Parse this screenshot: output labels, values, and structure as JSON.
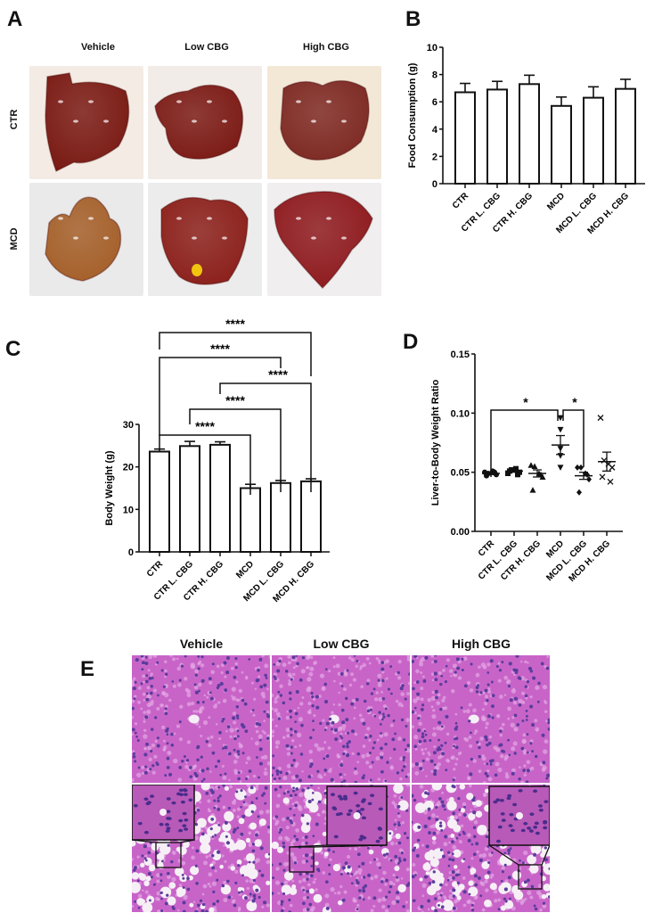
{
  "panel_a": {
    "letter": "A",
    "columns": [
      "Vehicle",
      "Low CBG",
      "High CBG"
    ],
    "rows": [
      "CTR",
      "MCD"
    ],
    "photos": [
      {
        "row": "CTR",
        "col": "Vehicle",
        "liver_color": "#7a1a14",
        "bg": "#f4ece4"
      },
      {
        "row": "CTR",
        "col": "Low CBG",
        "liver_color": "#7c1b16",
        "bg": "#f2ece8"
      },
      {
        "row": "CTR",
        "col": "High CBG",
        "liver_color": "#7e2a24",
        "bg": "#f3e7d6"
      },
      {
        "row": "MCD",
        "col": "Vehicle",
        "liver_color": "#a5602a",
        "bg": "#ebeaea"
      },
      {
        "row": "MCD",
        "col": "Low CBG",
        "liver_color": "#8c201b",
        "bg": "#ececec"
      },
      {
        "row": "MCD",
        "col": "High CBG",
        "liver_color": "#8e1a1e",
        "bg": "#f0eeee"
      }
    ]
  },
  "panel_b": {
    "letter": "B"
  },
  "panel_c": {
    "letter": "C"
  },
  "panel_d": {
    "letter": "D"
  },
  "panel_e": {
    "letter": "E",
    "columns": [
      "Vehicle",
      "Low CBG",
      "High CBG"
    ],
    "colors": {
      "tissue": "#c864c8",
      "nuclei": "#5a3c9c",
      "vacuole": "#f6f0f6"
    }
  },
  "chart_data": [
    {
      "id": "B",
      "type": "bar",
      "title": "",
      "xlabel": "",
      "ylabel": "Food Consumption (g)",
      "categories": [
        "CTR",
        "CTR L. CBG",
        "CTR H. CBG",
        "MCD",
        "MCD L. CBG",
        "MCD H. CBG"
      ],
      "values": [
        6.7,
        6.9,
        7.3,
        5.7,
        6.3,
        6.95
      ],
      "errors": [
        0.65,
        0.6,
        0.65,
        0.65,
        0.8,
        0.7
      ],
      "ylim": [
        0,
        10
      ],
      "yticks": [
        0,
        2,
        4,
        6,
        8,
        10
      ],
      "grid": false
    },
    {
      "id": "C",
      "type": "bar",
      "title": "",
      "xlabel": "",
      "ylabel": "Body Weight (g)",
      "categories": [
        "CTR",
        "CTR L. CBG",
        "CTR H. CBG",
        "MCD",
        "MCD L. CBG",
        "MCD H. CBG"
      ],
      "values": [
        23.6,
        24.9,
        25.2,
        15.0,
        16.2,
        16.6
      ],
      "errors": [
        0.6,
        1.1,
        0.7,
        0.9,
        0.6,
        0.6
      ],
      "ylim": [
        0,
        30
      ],
      "yticks": [
        0,
        10,
        20,
        30
      ],
      "grid": false,
      "annotations": [
        {
          "from": "CTR",
          "to": "MCD",
          "label": "****"
        },
        {
          "from": "CTR L. CBG",
          "to": "MCD L. CBG",
          "label": "****"
        },
        {
          "from": "CTR H. CBG",
          "to": "MCD H. CBG",
          "label": "****"
        },
        {
          "from": "CTR",
          "to": "MCD L. CBG",
          "label": "****"
        },
        {
          "from": "CTR",
          "to": "MCD H. CBG",
          "label": "****"
        }
      ]
    },
    {
      "id": "D",
      "type": "scatter",
      "title": "",
      "xlabel": "",
      "ylabel": "Liver-to-Body Weight Ratio",
      "categories": [
        "CTR",
        "CTR L. CBG",
        "CTR H. CBG",
        "MCD",
        "MCD L. CBG",
        "MCD H. CBG"
      ],
      "markers": [
        "circle",
        "square",
        "triangle-up",
        "triangle-down",
        "diamond",
        "x"
      ],
      "points": [
        [
          0.05,
          0.049,
          0.051,
          0.048,
          0.047,
          0.05
        ],
        [
          0.049,
          0.052,
          0.053,
          0.05,
          0.051,
          0.048
        ],
        [
          0.056,
          0.055,
          0.049,
          0.046,
          0.035,
          0.048
        ],
        [
          0.096,
          0.086,
          0.07,
          0.064,
          0.054
        ],
        [
          0.054,
          0.054,
          0.049,
          0.044,
          0.033,
          0.048
        ],
        [
          0.096,
          0.06,
          0.057,
          0.054,
          0.046,
          0.042
        ]
      ],
      "means": [
        0.049,
        0.051,
        0.049,
        0.073,
        0.047,
        0.059
      ],
      "sem": [
        0.001,
        0.001,
        0.003,
        0.008,
        0.003,
        0.008
      ],
      "ylim": [
        0,
        0.15
      ],
      "yticks": [
        "0.00",
        "0.05",
        "0.10",
        "0.15"
      ],
      "grid": false,
      "annotations": [
        {
          "from": "CTR",
          "to": "MCD",
          "label": "*"
        },
        {
          "from": "MCD",
          "to": "MCD L. CBG",
          "label": "*"
        }
      ]
    }
  ]
}
